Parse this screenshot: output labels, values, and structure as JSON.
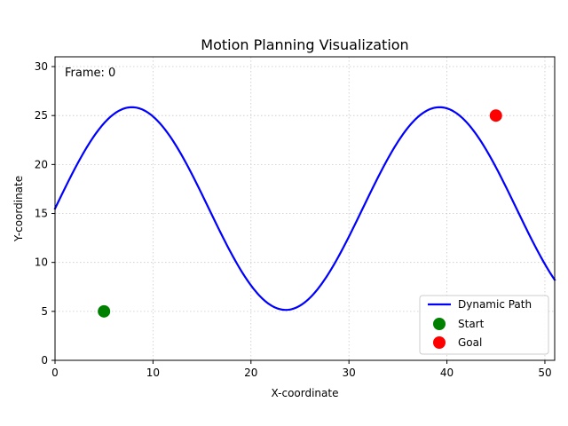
{
  "chart_data": {
    "type": "line",
    "title": "Motion Planning Visualization",
    "xlabel": "X-coordinate",
    "ylabel": "Y-coordinate",
    "xlim": [
      0,
      51
    ],
    "ylim": [
      0,
      31
    ],
    "xticks": [
      0,
      10,
      20,
      30,
      40,
      50
    ],
    "yticks": [
      0,
      5,
      10,
      15,
      20,
      25,
      30
    ],
    "grid": true,
    "legend_position": "lower-right",
    "annotation": "Frame: 0",
    "series": [
      {
        "name": "Dynamic Path",
        "kind": "line",
        "color": "#0000ff",
        "function": {
          "form": "sine",
          "offset": 15.5,
          "amplitude": 10.35,
          "period": 31.4,
          "x_start": 0,
          "x_end": 51
        }
      },
      {
        "name": "Start",
        "kind": "point",
        "color": "#008000",
        "x": 5,
        "y": 5
      },
      {
        "name": "Goal",
        "kind": "point",
        "color": "#ff0000",
        "x": 45,
        "y": 25
      }
    ]
  }
}
